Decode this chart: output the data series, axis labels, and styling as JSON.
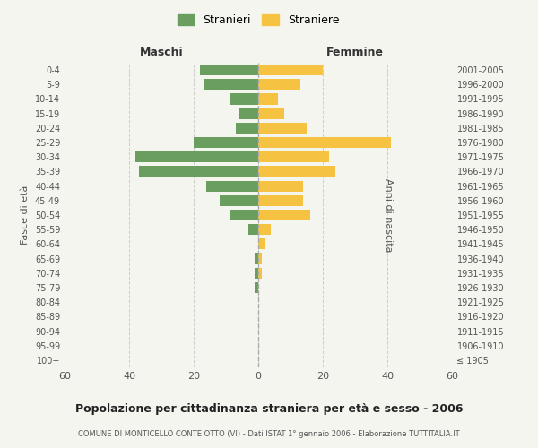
{
  "age_groups": [
    "100+",
    "95-99",
    "90-94",
    "85-89",
    "80-84",
    "75-79",
    "70-74",
    "65-69",
    "60-64",
    "55-59",
    "50-54",
    "45-49",
    "40-44",
    "35-39",
    "30-34",
    "25-29",
    "20-24",
    "15-19",
    "10-14",
    "5-9",
    "0-4"
  ],
  "birth_years": [
    "≤ 1905",
    "1906-1910",
    "1911-1915",
    "1916-1920",
    "1921-1925",
    "1926-1930",
    "1931-1935",
    "1936-1940",
    "1941-1945",
    "1946-1950",
    "1951-1955",
    "1956-1960",
    "1961-1965",
    "1966-1970",
    "1971-1975",
    "1976-1980",
    "1981-1985",
    "1986-1990",
    "1991-1995",
    "1996-2000",
    "2001-2005"
  ],
  "males": [
    0,
    0,
    0,
    0,
    0,
    1,
    1,
    1,
    0,
    3,
    9,
    12,
    16,
    37,
    38,
    20,
    7,
    6,
    9,
    17,
    18
  ],
  "females": [
    0,
    0,
    0,
    0,
    0,
    0,
    1,
    1,
    2,
    4,
    16,
    14,
    14,
    24,
    22,
    41,
    15,
    8,
    6,
    13,
    20
  ],
  "male_color": "#6a9e5e",
  "female_color": "#f5c242",
  "background_color": "#f5f5f0",
  "grid_color": "#cccccc",
  "title": "Popolazione per cittadinanza straniera per età e sesso - 2006",
  "subtitle": "COMUNE DI MONTICELLO CONTE OTTO (VI) - Dati ISTAT 1° gennaio 2006 - Elaborazione TUTTITALIA.IT",
  "xlabel_left": "Maschi",
  "xlabel_right": "Femmine",
  "ylabel_left": "Fasce di età",
  "ylabel_right": "Anni di nascita",
  "xlim": 60,
  "legend_male": "Stranieri",
  "legend_female": "Straniere"
}
